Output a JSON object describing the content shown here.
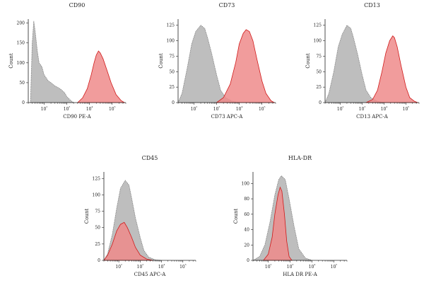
{
  "figure": {
    "colors": {
      "control_fill": "#b7b7b7",
      "control_stroke": "#7d7d7d",
      "marker_fill": "#ef8b8b",
      "marker_stroke": "#d01a1a"
    }
  },
  "chart_data": [
    {
      "type": "area",
      "title": "CD90",
      "xlabel": "CD90 PE-A",
      "ylabel": "Count",
      "xscale": "log",
      "xlim": [
        20,
        400000
      ],
      "ylim": [
        0,
        210
      ],
      "xticks": [
        100,
        1000,
        10000,
        100000
      ],
      "xtick_labels": [
        "10²",
        "10³",
        "10⁴",
        "10⁵"
      ],
      "yticks": [
        0,
        50,
        100,
        150,
        200
      ],
      "ytick_labels": [
        "0",
        "50",
        "100",
        "150",
        "200"
      ],
      "series": [
        {
          "role": "control",
          "points": [
            [
              25,
              0
            ],
            [
              30,
              150
            ],
            [
              35,
              205
            ],
            [
              40,
              180
            ],
            [
              50,
              130
            ],
            [
              60,
              100
            ],
            [
              80,
              90
            ],
            [
              100,
              70
            ],
            [
              150,
              55
            ],
            [
              200,
              50
            ],
            [
              300,
              42
            ],
            [
              500,
              35
            ],
            [
              800,
              25
            ],
            [
              1000,
              15
            ],
            [
              1500,
              5
            ],
            [
              2000,
              0
            ]
          ]
        },
        {
          "role": "marker",
          "points": [
            [
              3000,
              0
            ],
            [
              5000,
              12
            ],
            [
              8000,
              35
            ],
            [
              12000,
              70
            ],
            [
              16000,
              100
            ],
            [
              20000,
              120
            ],
            [
              25000,
              130
            ],
            [
              30000,
              125
            ],
            [
              40000,
              110
            ],
            [
              60000,
              80
            ],
            [
              90000,
              50
            ],
            [
              150000,
              20
            ],
            [
              250000,
              5
            ],
            [
              350000,
              0
            ]
          ]
        }
      ]
    },
    {
      "type": "area",
      "title": "CD73",
      "xlabel": "CD73 APC-A",
      "ylabel": "Count",
      "xscale": "log",
      "xlim": [
        20,
        400000
      ],
      "ylim": [
        0,
        135
      ],
      "xticks": [
        100,
        1000,
        10000,
        100000
      ],
      "xtick_labels": [
        "10²",
        "10³",
        "10⁴",
        "10⁵"
      ],
      "yticks": [
        0,
        25,
        50,
        75,
        100,
        125
      ],
      "ytick_labels": [
        "0",
        "25",
        "50",
        "75",
        "100",
        "125"
      ],
      "series": [
        {
          "role": "control",
          "points": [
            [
              20,
              0
            ],
            [
              30,
              15
            ],
            [
              50,
              55
            ],
            [
              80,
              95
            ],
            [
              120,
              115
            ],
            [
              200,
              125
            ],
            [
              300,
              120
            ],
            [
              400,
              105
            ],
            [
              600,
              80
            ],
            [
              1000,
              45
            ],
            [
              1500,
              20
            ],
            [
              2500,
              8
            ],
            [
              5000,
              2
            ],
            [
              10000,
              0
            ]
          ]
        },
        {
          "role": "marker",
          "points": [
            [
              1000,
              0
            ],
            [
              2000,
              8
            ],
            [
              4000,
              30
            ],
            [
              7000,
              65
            ],
            [
              10000,
              95
            ],
            [
              15000,
              112
            ],
            [
              20000,
              118
            ],
            [
              28000,
              115
            ],
            [
              40000,
              100
            ],
            [
              60000,
              70
            ],
            [
              100000,
              35
            ],
            [
              150000,
              15
            ],
            [
              250000,
              3
            ],
            [
              350000,
              0
            ]
          ]
        }
      ]
    },
    {
      "type": "area",
      "title": "CD13",
      "xlabel": "CD13 APC-A",
      "ylabel": "Count",
      "xscale": "log",
      "xlim": [
        20,
        400000
      ],
      "ylim": [
        0,
        135
      ],
      "xticks": [
        100,
        1000,
        10000,
        100000
      ],
      "xtick_labels": [
        "10²",
        "10³",
        "10⁴",
        "10⁵"
      ],
      "yticks": [
        0,
        25,
        50,
        75,
        100,
        125
      ],
      "ytick_labels": [
        "0",
        "25",
        "50",
        "75",
        "100",
        "125"
      ],
      "series": [
        {
          "role": "control",
          "points": [
            [
              20,
              0
            ],
            [
              30,
              15
            ],
            [
              50,
              50
            ],
            [
              80,
              90
            ],
            [
              120,
              110
            ],
            [
              200,
              125
            ],
            [
              300,
              120
            ],
            [
              400,
              105
            ],
            [
              600,
              80
            ],
            [
              1000,
              45
            ],
            [
              1500,
              20
            ],
            [
              2500,
              8
            ],
            [
              5000,
              2
            ],
            [
              10000,
              0
            ]
          ]
        },
        {
          "role": "marker",
          "points": [
            [
              1500,
              0
            ],
            [
              3000,
              5
            ],
            [
              5000,
              20
            ],
            [
              8000,
              50
            ],
            [
              12000,
              80
            ],
            [
              18000,
              100
            ],
            [
              25000,
              108
            ],
            [
              30000,
              105
            ],
            [
              40000,
              90
            ],
            [
              60000,
              60
            ],
            [
              100000,
              25
            ],
            [
              150000,
              8
            ],
            [
              250000,
              2
            ],
            [
              350000,
              0
            ]
          ]
        }
      ]
    },
    {
      "type": "area",
      "title": "CD45",
      "xlabel": "CD45 APC-A",
      "ylabel": "Count",
      "xscale": "log",
      "xlim": [
        20,
        400000
      ],
      "ylim": [
        0,
        135
      ],
      "xticks": [
        100,
        1000,
        10000,
        100000
      ],
      "xtick_labels": [
        "10²",
        "10³",
        "10⁴",
        "10⁵"
      ],
      "yticks": [
        0,
        25,
        50,
        75,
        100,
        125
      ],
      "ytick_labels": [
        "0",
        "25",
        "50",
        "75",
        "100",
        "125"
      ],
      "series": [
        {
          "role": "control",
          "points": [
            [
              20,
              0
            ],
            [
              30,
              10
            ],
            [
              50,
              40
            ],
            [
              80,
              80
            ],
            [
              120,
              110
            ],
            [
              200,
              122
            ],
            [
              300,
              115
            ],
            [
              400,
              95
            ],
            [
              600,
              65
            ],
            [
              1000,
              35
            ],
            [
              1500,
              15
            ],
            [
              2500,
              5
            ],
            [
              5000,
              1
            ],
            [
              10000,
              0
            ]
          ]
        },
        {
          "role": "marker",
          "points": [
            [
              20,
              0
            ],
            [
              30,
              8
            ],
            [
              50,
              25
            ],
            [
              80,
              45
            ],
            [
              120,
              55
            ],
            [
              180,
              58
            ],
            [
              250,
              50
            ],
            [
              400,
              35
            ],
            [
              600,
              20
            ],
            [
              1000,
              8
            ],
            [
              2000,
              2
            ],
            [
              4000,
              0
            ]
          ]
        }
      ]
    },
    {
      "type": "area",
      "title": "HLA-DR",
      "xlabel": "HLA DR PE-A",
      "ylabel": "Count",
      "xscale": "log",
      "xlim": [
        20,
        400000
      ],
      "ylim": [
        0,
        115
      ],
      "xticks": [
        100,
        1000,
        10000,
        100000
      ],
      "xtick_labels": [
        "10²",
        "10³",
        "10⁴",
        "10⁵"
      ],
      "yticks": [
        0,
        20,
        40,
        60,
        80,
        100
      ],
      "ytick_labels": [
        "0",
        "20",
        "40",
        "60",
        "80",
        "100"
      ],
      "series": [
        {
          "role": "control",
          "points": [
            [
              20,
              0
            ],
            [
              40,
              5
            ],
            [
              70,
              20
            ],
            [
              120,
              50
            ],
            [
              200,
              85
            ],
            [
              300,
              105
            ],
            [
              400,
              110
            ],
            [
              600,
              105
            ],
            [
              900,
              80
            ],
            [
              1500,
              45
            ],
            [
              2500,
              15
            ],
            [
              5000,
              3
            ],
            [
              10000,
              0
            ]
          ]
        },
        {
          "role": "marker",
          "points": [
            [
              60,
              0
            ],
            [
              100,
              8
            ],
            [
              150,
              30
            ],
            [
              200,
              60
            ],
            [
              280,
              85
            ],
            [
              350,
              95
            ],
            [
              420,
              90
            ],
            [
              550,
              60
            ],
            [
              700,
              25
            ],
            [
              900,
              5
            ],
            [
              1200,
              0
            ]
          ]
        }
      ]
    }
  ]
}
